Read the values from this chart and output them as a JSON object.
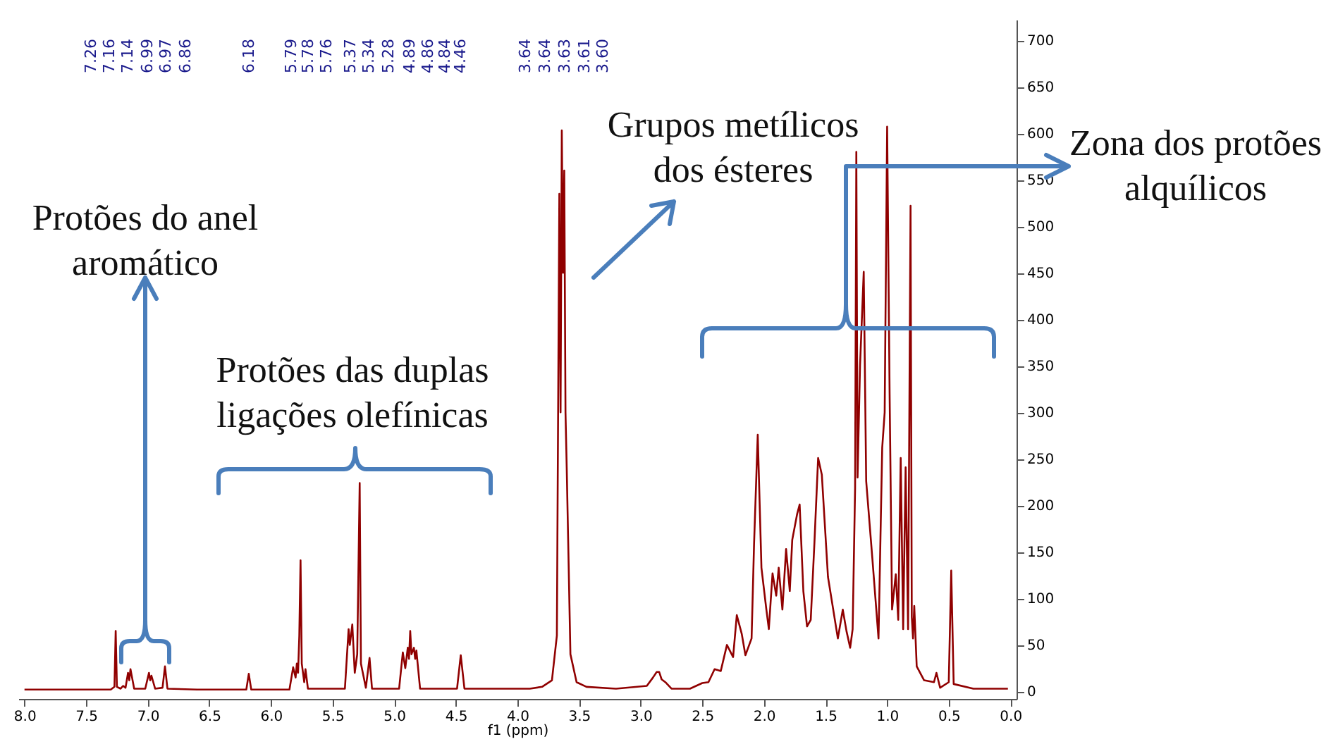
{
  "chart_data": {
    "type": "line",
    "xlabel": "f1 (ppm)",
    "color": "#900000",
    "xlim": [
      8.05,
      -0.05
    ],
    "ylim": [
      -8,
      722
    ],
    "xticks": [
      {
        "value": 8,
        "label": "8.0"
      },
      7.5,
      {
        "value": 7,
        "label": "7.0"
      },
      6.5,
      {
        "value": 6,
        "label": "6.0"
      },
      5.5,
      {
        "value": 5,
        "label": "5.0"
      },
      4.5,
      {
        "value": 4,
        "label": "4.0"
      },
      3.5,
      {
        "value": 3,
        "label": "3.0"
      },
      2.5,
      {
        "value": 2,
        "label": "2.0"
      },
      1.5,
      {
        "value": 1,
        "label": "1.0"
      },
      0.5,
      {
        "value": 0,
        "label": "0.0"
      }
    ],
    "yticks": [
      0,
      50,
      100,
      150,
      200,
      250,
      300,
      350,
      400,
      450,
      500,
      550,
      600,
      650,
      700
    ],
    "x": [
      8.0,
      7.3,
      7.27,
      7.26,
      7.25,
      7.22,
      7.2,
      7.18,
      7.16,
      7.15,
      7.14,
      7.11,
      7.02,
      6.99,
      6.98,
      6.97,
      6.94,
      6.88,
      6.86,
      6.84,
      6.6,
      6.2,
      6.18,
      6.16,
      5.85,
      5.82,
      5.8,
      5.79,
      5.78,
      5.77,
      5.76,
      5.75,
      5.73,
      5.72,
      5.7,
      5.4,
      5.37,
      5.36,
      5.34,
      5.32,
      5.3,
      5.28,
      5.27,
      5.23,
      5.2,
      5.18,
      4.96,
      4.93,
      4.91,
      4.89,
      4.88,
      4.87,
      4.86,
      4.84,
      4.83,
      4.82,
      4.79,
      4.49,
      4.46,
      4.43,
      3.9,
      3.8,
      3.72,
      3.68,
      3.66,
      3.65,
      3.64,
      3.63,
      3.62,
      3.61,
      3.6,
      3.57,
      3.52,
      3.44,
      3.2,
      2.95,
      2.9,
      2.87,
      2.85,
      2.83,
      2.8,
      2.75,
      2.6,
      2.5,
      2.45,
      2.4,
      2.35,
      2.3,
      2.25,
      2.22,
      2.18,
      2.15,
      2.1,
      2.08,
      2.05,
      2.02,
      1.98,
      1.96,
      1.93,
      1.9,
      1.88,
      1.85,
      1.82,
      1.79,
      1.77,
      1.73,
      1.71,
      1.68,
      1.65,
      1.62,
      1.59,
      1.56,
      1.53,
      1.48,
      1.4,
      1.36,
      1.33,
      1.3,
      1.28,
      1.26,
      1.25,
      1.24,
      1.22,
      1.19,
      1.17,
      1.12,
      1.07,
      1.04,
      1.02,
      1.0,
      0.98,
      0.96,
      0.93,
      0.91,
      0.89,
      0.87,
      0.85,
      0.83,
      0.81,
      0.8,
      0.79,
      0.78,
      0.76,
      0.7,
      0.62,
      0.6,
      0.57,
      0.5,
      0.48,
      0.46,
      0.3,
      0.02
    ],
    "values": [
      2,
      2,
      5,
      65,
      5,
      3,
      6,
      4,
      20,
      12,
      24,
      3,
      3,
      20,
      12,
      17,
      3,
      4,
      27,
      3,
      2,
      2,
      19,
      2,
      2,
      26,
      15,
      30,
      20,
      60,
      141,
      30,
      10,
      24,
      3,
      3,
      67,
      50,
      72,
      20,
      40,
      224,
      30,
      4,
      36,
      3,
      3,
      42,
      25,
      47,
      35,
      65,
      40,
      47,
      35,
      44,
      3,
      3,
      39,
      3,
      3,
      5,
      12,
      60,
      535,
      300,
      603,
      450,
      560,
      300,
      240,
      40,
      10,
      5,
      3,
      6,
      15,
      21,
      21,
      13,
      10,
      3,
      3,
      9,
      10,
      24,
      22,
      50,
      37,
      82,
      62,
      39,
      57,
      158,
      276,
      133,
      88,
      67,
      127,
      103,
      133,
      88,
      153,
      108,
      163,
      191,
      201,
      108,
      70,
      77,
      160,
      251,
      233,
      123,
      57,
      88,
      65,
      47,
      67,
      219,
      580,
      230,
      350,
      451,
      226,
      143,
      57,
      262,
      300,
      607,
      320,
      88,
      126,
      77,
      251,
      67,
      241,
      67,
      522,
      80,
      57,
      92,
      27,
      12,
      10,
      20,
      4,
      10,
      130,
      8,
      3,
      3
    ],
    "annotations": [
      "7.26",
      "7.16",
      "7.14",
      "6.99",
      "6.97",
      "6.86",
      "6.18",
      "5.79",
      "5.78",
      "5.76",
      "5.37",
      "5.34",
      "5.28",
      "4.89",
      "4.86",
      "4.84",
      "4.46",
      "3.64",
      "3.64",
      "3.63",
      "3.61",
      "3.60",
      "Protões do anel\naromático",
      "Protões das duplas\nligações olefínicas",
      "Grupos metílicos\ndos ésteres",
      "Zona dos protões\nalquílicos"
    ]
  }
}
